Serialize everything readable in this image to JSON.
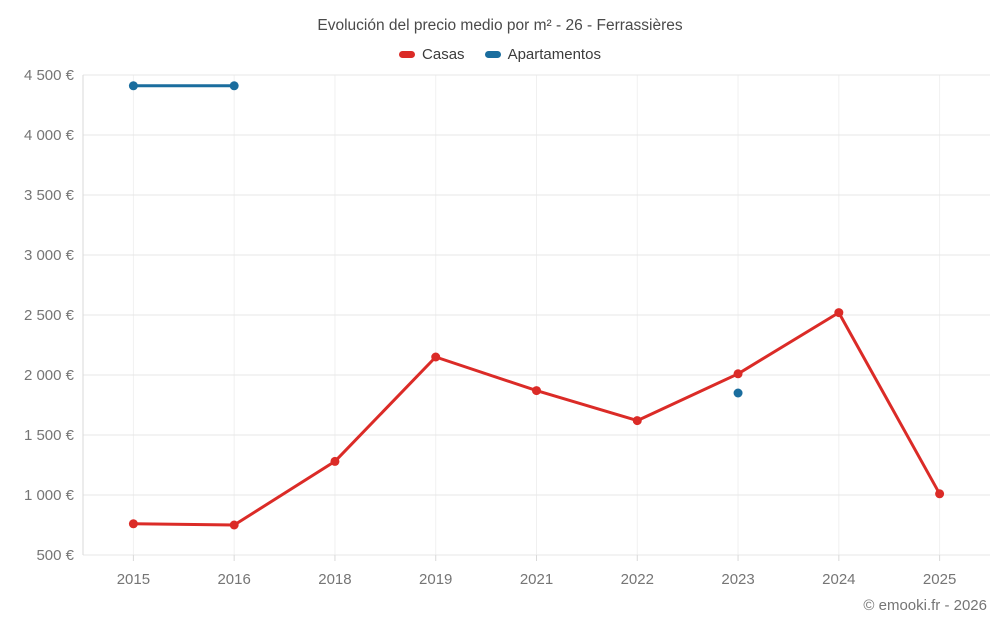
{
  "chart_data": {
    "type": "line",
    "title": "Evolución del precio medio por m² - 26 - Ferrassières",
    "categories": [
      "2015",
      "2016",
      "2018",
      "2019",
      "2021",
      "2022",
      "2023",
      "2024",
      "2025"
    ],
    "series": [
      {
        "name": "Casas",
        "color": "#db2b27",
        "values": [
          760,
          750,
          1280,
          2150,
          1870,
          1620,
          2010,
          2520,
          1010
        ]
      },
      {
        "name": "Apartamentos",
        "color": "#1a6d9e",
        "values": [
          4410,
          4410,
          null,
          null,
          null,
          null,
          1850,
          null,
          null
        ]
      }
    ],
    "ylim": [
      500,
      4500
    ],
    "ytick_step": 500,
    "ytick_labels": [
      "500 €",
      "1 000 €",
      "1 500 €",
      "2 000 €",
      "2 500 €",
      "3 000 €",
      "3 500 €",
      "4 000 €",
      "4 500 €"
    ],
    "ytick_suffix": "€",
    "legend_position": "top",
    "grid": true
  },
  "footer": {
    "credit": "© emooki.fr - 2026"
  }
}
